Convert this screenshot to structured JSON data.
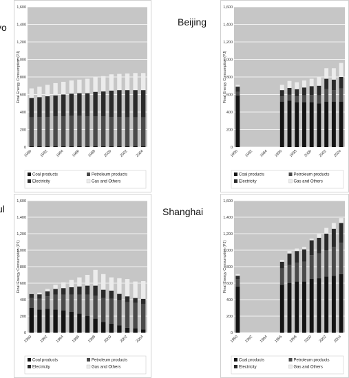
{
  "labels": {
    "tokyo": "yo",
    "beijing": "Beijing",
    "seoul": "ul",
    "shanghai": "Shanghai"
  },
  "colors": {
    "plot_bg": "#c6c6c6",
    "grid": "#ffffff",
    "coal": "#141414",
    "petroleum": "#4a4a4a",
    "electricity": "#2a2a2a",
    "gas_others": "#ececec"
  },
  "chart_data": [
    {
      "type": "bar",
      "stacked": true,
      "ylabel": "Final Energy Consumption (PJ)",
      "ylim": [
        0,
        1600
      ],
      "yticks": [
        "0",
        "200",
        "400",
        "600",
        "800",
        "1,000",
        "1,200",
        "1,400",
        "1,600"
      ],
      "x": [
        "1990",
        "1991",
        "1992",
        "1993",
        "1994",
        "1995",
        "1996",
        "1997",
        "1998",
        "1999",
        "2000",
        "2001",
        "2002",
        "2003",
        "2004"
      ],
      "xtick_labels": [
        "1990",
        "1992",
        "1994",
        "1996",
        "1998",
        "2000",
        "2002",
        "2004"
      ],
      "grid": true,
      "legend": [
        "Coal products",
        "Petroleum products",
        "Electricity",
        "Gas and Others"
      ],
      "legend_position": "bottom",
      "series": [
        {
          "name": "Coal products",
          "values": [
            10,
            10,
            10,
            10,
            10,
            10,
            10,
            10,
            10,
            10,
            10,
            10,
            10,
            10,
            10
          ]
        },
        {
          "name": "Petroleum products",
          "values": [
            330,
            335,
            335,
            340,
            340,
            345,
            345,
            340,
            340,
            340,
            335,
            335,
            330,
            330,
            330
          ]
        },
        {
          "name": "Electricity",
          "values": [
            220,
            225,
            235,
            240,
            250,
            255,
            260,
            265,
            280,
            285,
            300,
            305,
            310,
            310,
            310
          ]
        },
        {
          "name": "Gas and Others",
          "values": [
            110,
            120,
            130,
            140,
            145,
            150,
            155,
            165,
            170,
            175,
            185,
            185,
            190,
            195,
            195
          ]
        }
      ]
    },
    {
      "type": "bar",
      "stacked": true,
      "ylabel": "Final Energy Consumption (PJ)",
      "ylim": [
        0,
        1600
      ],
      "yticks": [
        "0",
        "200",
        "400",
        "600",
        "800",
        "1,000",
        "1,200",
        "1,400",
        "1,600"
      ],
      "x": [
        "1990",
        "1991",
        "1992",
        "1993",
        "1994",
        "1995",
        "1996",
        "1997",
        "1998",
        "1999",
        "2000",
        "2001",
        "2002",
        "2003",
        "2004"
      ],
      "xtick_labels": [
        "1990",
        "1992",
        "1994",
        "1996",
        "1998",
        "2000",
        "2002",
        "2004"
      ],
      "grid": true,
      "legend": [
        "Coal products",
        "Petroleum products",
        "Electricity",
        "Gas and Others"
      ],
      "legend_position": "bottom",
      "series": [
        {
          "name": "Coal products",
          "values": [
            590,
            0,
            0,
            0,
            0,
            0,
            520,
            530,
            510,
            510,
            510,
            500,
            520,
            520,
            520
          ]
        },
        {
          "name": "Petroleum products",
          "values": [
            40,
            0,
            0,
            0,
            0,
            0,
            60,
            70,
            70,
            80,
            85,
            90,
            140,
            130,
            150
          ]
        },
        {
          "name": "Electricity",
          "values": [
            60,
            0,
            0,
            0,
            0,
            0,
            70,
            75,
            80,
            90,
            100,
            110,
            120,
            120,
            130
          ]
        },
        {
          "name": "Gas and Others",
          "values": [
            20,
            0,
            0,
            0,
            0,
            0,
            60,
            80,
            80,
            80,
            85,
            100,
            120,
            130,
            160
          ]
        }
      ]
    },
    {
      "type": "bar",
      "stacked": true,
      "ylabel": "Final Energy Consumption (PJ)",
      "ylim": [
        0,
        1600
      ],
      "yticks": [
        "0",
        "200",
        "400",
        "600",
        "800",
        "1,000",
        "1,200",
        "1,400",
        "1,600"
      ],
      "x": [
        "1990",
        "1991",
        "1992",
        "1993",
        "1994",
        "1995",
        "1996",
        "1997",
        "1998",
        "1999",
        "2000",
        "2001",
        "2002",
        "2003",
        "2004"
      ],
      "xtick_labels": [
        "1990",
        "1992",
        "1994",
        "1996",
        "1998",
        "2000",
        "2002",
        "2004"
      ],
      "grid": true,
      "legend": [
        "Coal products",
        "Petroleum products",
        "Electricity",
        "Gas and Others"
      ],
      "legend_position": "bottom",
      "series": [
        {
          "name": "Coal products",
          "values": [
            300,
            280,
            290,
            280,
            270,
            250,
            230,
            200,
            170,
            130,
            110,
            90,
            60,
            50,
            40
          ]
        },
        {
          "name": "Petroleum products",
          "values": [
            120,
            130,
            150,
            180,
            190,
            210,
            230,
            260,
            280,
            290,
            300,
            300,
            310,
            310,
            310
          ]
        },
        {
          "name": "Electricity",
          "values": [
            50,
            55,
            60,
            70,
            80,
            90,
            100,
            110,
            120,
            100,
            100,
            80,
            70,
            60,
            60
          ]
        },
        {
          "name": "Gas and Others",
          "values": [
            10,
            20,
            30,
            50,
            70,
            90,
            110,
            130,
            190,
            190,
            160,
            190,
            210,
            200,
            215
          ]
        }
      ]
    },
    {
      "type": "bar",
      "stacked": true,
      "ylabel": "Final Energy Consumption (PJ)",
      "ylim": [
        0,
        1600
      ],
      "yticks": [
        "0",
        "200",
        "400",
        "600",
        "800",
        "1,000",
        "1,200",
        "1,400",
        "1,600"
      ],
      "x": [
        "1990",
        "1991",
        "1992",
        "1993",
        "1994",
        "1995",
        "1996",
        "1997",
        "1998",
        "1999",
        "2000",
        "2001",
        "2002",
        "2003",
        "2004"
      ],
      "xtick_labels": [
        "1990",
        "1992",
        "1994",
        "1996",
        "1998",
        "2000",
        "2002",
        "2004"
      ],
      "grid": true,
      "legend": [
        "Coal products",
        "Petroleum products",
        "Electricity",
        "Gas and Others"
      ],
      "legend_position": "bottom",
      "series": [
        {
          "name": "Coal products",
          "values": [
            560,
            0,
            0,
            0,
            0,
            0,
            580,
            600,
            620,
            620,
            650,
            660,
            680,
            690,
            710
          ]
        },
        {
          "name": "Petroleum products",
          "values": [
            90,
            0,
            0,
            0,
            0,
            0,
            200,
            220,
            230,
            240,
            290,
            300,
            320,
            350,
            380
          ]
        },
        {
          "name": "Electricity",
          "values": [
            40,
            0,
            0,
            0,
            0,
            0,
            80,
            140,
            140,
            150,
            180,
            190,
            200,
            220,
            240
          ]
        },
        {
          "name": "Gas and Others",
          "values": [
            20,
            0,
            0,
            0,
            0,
            0,
            20,
            30,
            30,
            30,
            20,
            50,
            70,
            70,
            60
          ]
        }
      ]
    }
  ]
}
